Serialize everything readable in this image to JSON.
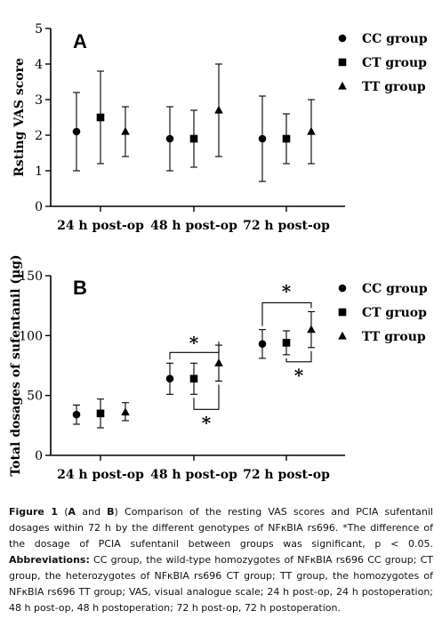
{
  "chart_data": [
    {
      "type": "scatter",
      "panel": "A",
      "title": "",
      "xlabel": "",
      "ylabel": "Rsting VAS score",
      "categories": [
        "24 h post-op",
        "48 h post-op",
        "72 h post-op"
      ],
      "ylim": [
        0,
        5
      ],
      "yticks": [
        "0",
        "1",
        "2",
        "3",
        "4",
        "5"
      ],
      "grid": false,
      "legend_position": "right",
      "series": [
        {
          "name": "CC group",
          "marker": "circle",
          "values": [
            2.1,
            1.9,
            1.9
          ],
          "lower": [
            1.0,
            1.0,
            0.7
          ],
          "upper": [
            3.2,
            2.8,
            3.1
          ]
        },
        {
          "name": "CT group",
          "marker": "square",
          "values": [
            2.5,
            1.9,
            1.9
          ],
          "lower": [
            1.2,
            1.1,
            1.2
          ],
          "upper": [
            3.8,
            2.7,
            2.6
          ]
        },
        {
          "name": "TT group",
          "marker": "triangle",
          "values": [
            2.1,
            2.7,
            2.1
          ],
          "lower": [
            1.4,
            1.4,
            1.2
          ],
          "upper": [
            2.8,
            4.0,
            3.0
          ]
        }
      ]
    },
    {
      "type": "scatter",
      "panel": "B",
      "title": "",
      "xlabel": "",
      "ylabel": "Total dosages of sufentanil (μg)",
      "categories": [
        "24 h post-op",
        "48 h post-op",
        "72 h post-op"
      ],
      "ylim": [
        0,
        150
      ],
      "yticks": [
        "0",
        "50",
        "100",
        "150"
      ],
      "grid": false,
      "legend_position": "right",
      "significance_marker": "*",
      "series": [
        {
          "name": "CC group",
          "marker": "circle",
          "values": [
            34,
            64,
            93
          ],
          "lower": [
            26,
            51,
            81
          ],
          "upper": [
            42,
            77,
            105
          ]
        },
        {
          "name": "CT gruop",
          "marker": "square",
          "values": [
            35,
            64,
            94
          ],
          "lower": [
            23,
            51,
            84
          ],
          "upper": [
            47,
            77,
            104
          ]
        },
        {
          "name": "TT group",
          "marker": "triangle",
          "values": [
            36,
            77,
            105
          ],
          "lower": [
            29,
            62,
            90
          ],
          "upper": [
            44,
            92,
            120
          ]
        }
      ]
    }
  ],
  "caption": {
    "label": "Figure 1",
    "part1": " (",
    "a": "A",
    "and": " and ",
    "b": "B",
    "part2": ") Comparison of the resting VAS scores and PCIA sufentanil dosages within 72 h by the different genotypes of NFκBIA rs696. *The difference of the dosage of PCIA sufentanil between groups was significant, p < 0.05. ",
    "abbr_label": "Abbreviations:",
    "abbr_text": " CC group, the wild-type homozygotes of NFκBIA rs696 CC group; CT group, the heterozygotes of NFκBIA rs696 CT group; TT group, the homozygotes of NFκBIA rs696 TT group; VAS, visual analogue scale; 24 h post-op, 24 h postoperation; 48 h post-op, 48 h postoperation; 72 h post-op, 72 h postoperation."
  },
  "colors": {
    "ink": "#000000",
    "background": "#ffffff"
  }
}
